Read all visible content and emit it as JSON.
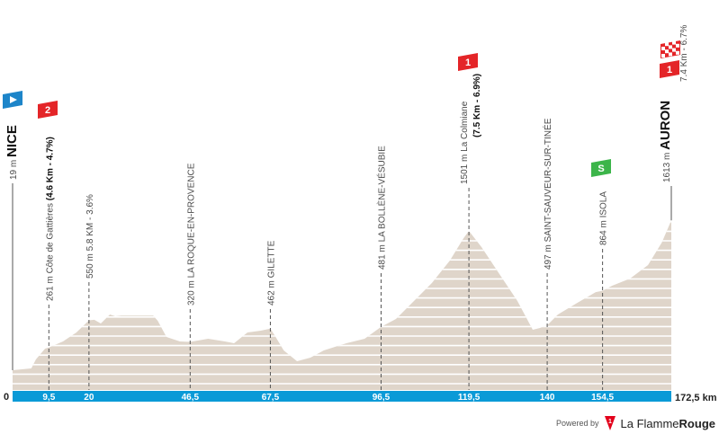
{
  "chart_data": {
    "type": "area",
    "xlabel": "",
    "ylabel": "",
    "x_unit": "km",
    "xlim": [
      0,
      172.5
    ],
    "grid": true,
    "colors": {
      "profile": "#dfd5ca",
      "axis_bar": "#0a9ad7",
      "grid": "#ffffff"
    },
    "points": [
      [
        0,
        19
      ],
      [
        4.9,
        38
      ],
      [
        6.1,
        134
      ],
      [
        8.5,
        249
      ],
      [
        9.5,
        261
      ],
      [
        13.2,
        325
      ],
      [
        16.7,
        421
      ],
      [
        20,
        550
      ],
      [
        21.4,
        555
      ],
      [
        23.1,
        516
      ],
      [
        25.5,
        612
      ],
      [
        26.9,
        593
      ],
      [
        28.5,
        600
      ],
      [
        36.8,
        600
      ],
      [
        38,
        545
      ],
      [
        40.3,
        373
      ],
      [
        43.8,
        325
      ],
      [
        46.5,
        320
      ],
      [
        51.2,
        354
      ],
      [
        55.6,
        325
      ],
      [
        58,
        306
      ],
      [
        61.5,
        421
      ],
      [
        65,
        440
      ],
      [
        67.5,
        462
      ],
      [
        68.6,
        392
      ],
      [
        71,
        229
      ],
      [
        74.5,
        115
      ],
      [
        78,
        153
      ],
      [
        81.5,
        229
      ],
      [
        87.4,
        306
      ],
      [
        92.2,
        354
      ],
      [
        96.5,
        481
      ],
      [
        100.4,
        564
      ],
      [
        105.1,
        755
      ],
      [
        109.8,
        946
      ],
      [
        114.5,
        1185
      ],
      [
        118.1,
        1424
      ],
      [
        119.5,
        1501
      ],
      [
        122.8,
        1329
      ],
      [
        127.5,
        1042
      ],
      [
        132.2,
        755
      ],
      [
        136.2,
        449
      ],
      [
        138.1,
        468
      ],
      [
        140,
        497
      ],
      [
        142.8,
        612
      ],
      [
        147.5,
        727
      ],
      [
        152.7,
        850
      ],
      [
        154.5,
        864
      ],
      [
        157,
        918
      ],
      [
        161.7,
        994
      ],
      [
        166.4,
        1138
      ],
      [
        170,
        1377
      ],
      [
        172.5,
        1613
      ]
    ],
    "km_ticks": [
      "0",
      "9,5",
      "20",
      "46,5",
      "67,5",
      "96,5",
      "119,5",
      "140",
      "154,5"
    ],
    "km_tick_values": [
      0,
      9.5,
      20,
      46.5,
      67.5,
      96.5,
      119.5,
      140,
      154.5
    ],
    "km_end_label": "172,5 km",
    "markers": [
      {
        "km": 0,
        "text": "19 m ",
        "bold": "NICE",
        "line2": "",
        "icon": "start-flag-icon",
        "style": "start"
      },
      {
        "km": 9.5,
        "text": "261 m Côte de Gattières ",
        "bold": "(4.6 Km - 4.7%)",
        "line2": "",
        "icon": "climb-cat2-icon",
        "category": "2"
      },
      {
        "km": 20,
        "text": "550 m 5.8 KM - 3.6%",
        "bold": "",
        "line2": ""
      },
      {
        "km": 46.5,
        "text": "320 m LA ROQUE-EN-PROVENCE",
        "bold": "",
        "line2": ""
      },
      {
        "km": 67.5,
        "text": "462 m GILETTE",
        "bold": "",
        "line2": ""
      },
      {
        "km": 96.5,
        "text": "481 m LA BOLLÈNE-VÉSUBIE",
        "bold": "",
        "line2": ""
      },
      {
        "km": 119.5,
        "text": "1501 m La Colmiane",
        "bold": "",
        "line2": "(7.5 Km - 6.9%)",
        "icon": "climb-cat1-icon",
        "category": "1"
      },
      {
        "km": 140,
        "text": "497 m SAINT-SAUVEUR-SUR-TINÉE",
        "bold": "",
        "line2": ""
      },
      {
        "km": 154.5,
        "text": "864 m ISOLA",
        "bold": "",
        "line2": "",
        "icon": "sprint-icon",
        "category": "S"
      },
      {
        "km": 172.5,
        "text": "1613 m ",
        "bold": "AURON",
        "line2": "7.4 Km - 6.7%",
        "icon": "finish-flag-icon",
        "category": "1"
      }
    ]
  },
  "footer": {
    "powered_by": "Powered by",
    "brand_light": "La Flamme",
    "brand_bold": "Rouge"
  }
}
